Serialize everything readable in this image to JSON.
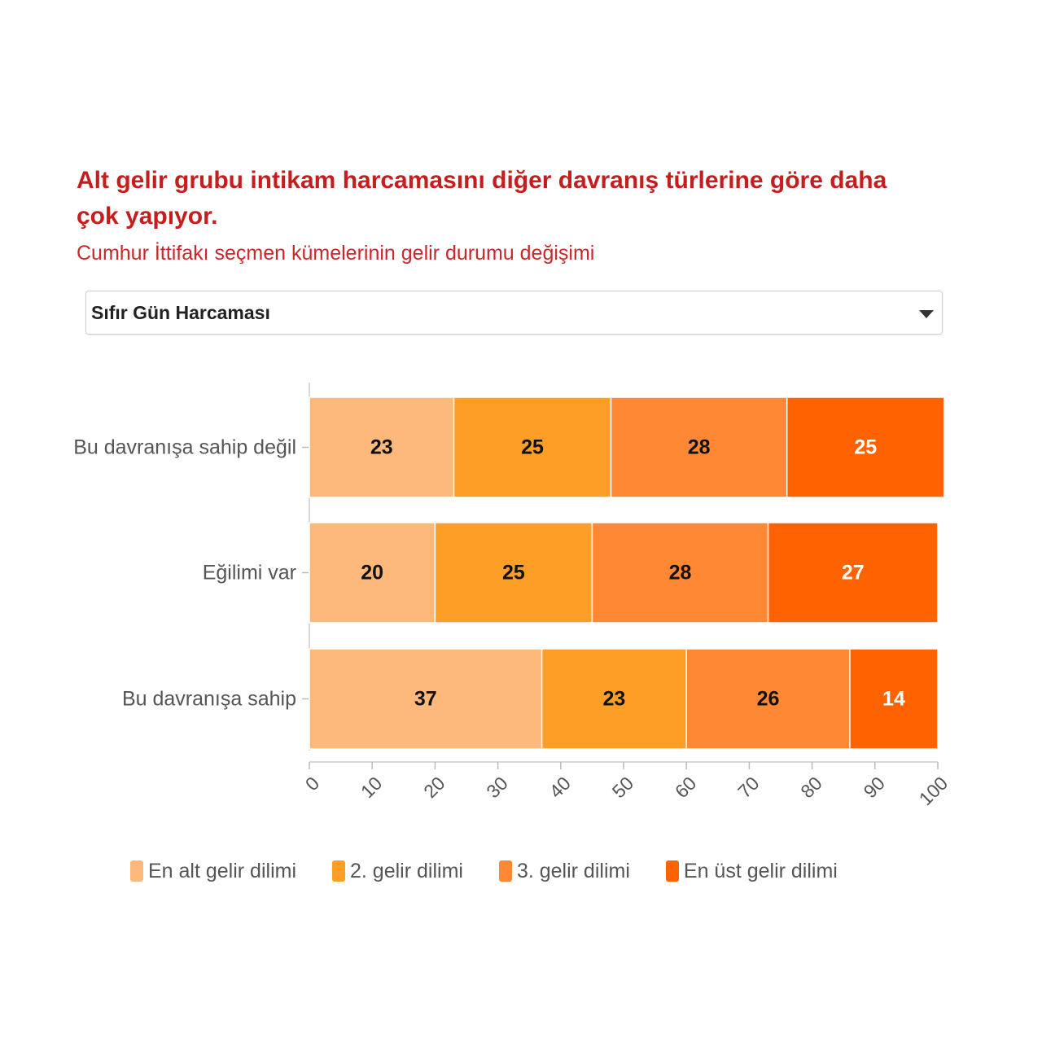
{
  "header": {
    "title": "Alt gelir grubu intikam harcamasını diğer davranış türlerine göre daha çok yapıyor.",
    "subtitle": "Cumhur İttifakı seçmen kümelerinin gelir durumu değişimi"
  },
  "dropdown": {
    "selected": "Sıfır Gün Harcaması"
  },
  "chart_data": {
    "type": "bar",
    "orientation": "horizontal",
    "stacked": true,
    "categories": [
      "Bu davranışa sahip değil",
      "Eğilimi var",
      "Bu davranışa sahip"
    ],
    "series": [
      {
        "name": "En alt gelir dilimi",
        "color": "#fdb97c",
        "values": [
          23,
          20,
          37
        ]
      },
      {
        "name": "2. gelir dilimi",
        "color": "#fd9e26",
        "values": [
          25,
          25,
          23
        ]
      },
      {
        "name": "3. gelir dilimi",
        "color": "#fe8834",
        "values": [
          28,
          28,
          26
        ]
      },
      {
        "name": "En üst gelir dilimi",
        "color": "#ff6201",
        "values": [
          25,
          27,
          14
        ]
      }
    ],
    "data_label_colors": [
      "#111111",
      "#111111",
      "#111111",
      "#ffffff"
    ],
    "xlim": [
      0,
      100
    ],
    "xticks": [
      0,
      10,
      20,
      30,
      40,
      50,
      60,
      70,
      80,
      90,
      100
    ],
    "grid": false,
    "legend_position": "bottom"
  }
}
